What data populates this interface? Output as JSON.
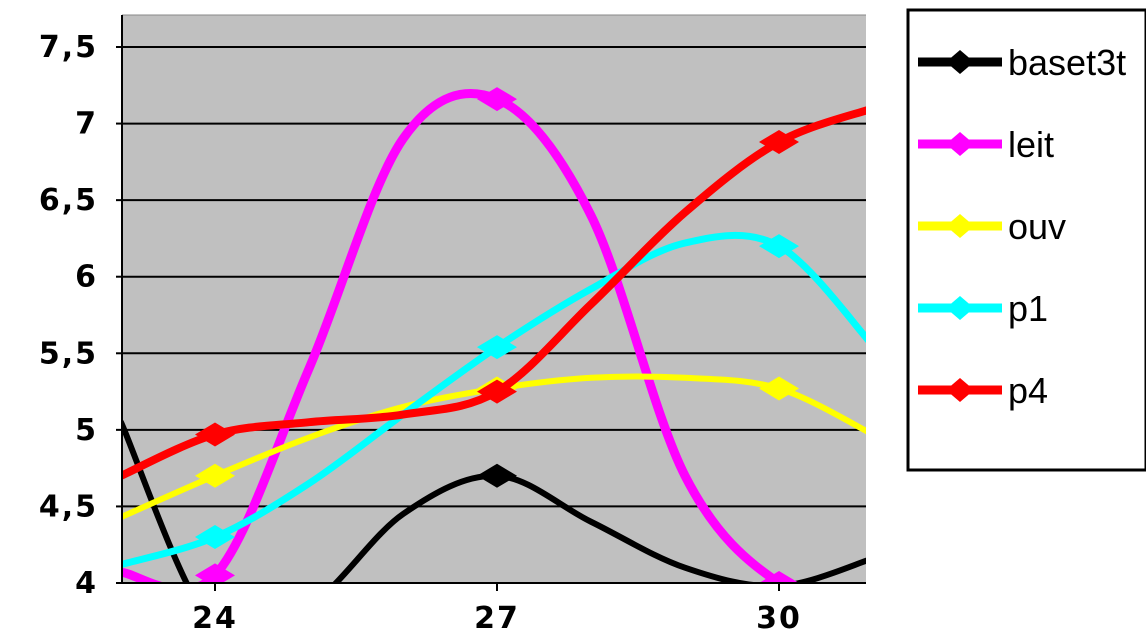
{
  "chart_data": {
    "type": "line",
    "title": "",
    "xlabel": "",
    "ylabel": "",
    "x_ticks": [
      "24",
      "27",
      "30"
    ],
    "y_ticks": [
      "4",
      "4,5",
      "5",
      "5,5",
      "6",
      "6,5",
      "7",
      "7,5"
    ],
    "xlim": [
      23,
      31
    ],
    "ylim": [
      4,
      7.5
    ],
    "grid": true,
    "legend_position": "right",
    "plot_background": "#c0c0c0",
    "series": [
      {
        "name": "baset3t",
        "color": "#000000",
        "points": [
          [
            23,
            5.05
          ],
          [
            24,
            3.7
          ],
          [
            25,
            3.85
          ],
          [
            26,
            4.45
          ],
          [
            27,
            4.7
          ],
          [
            28,
            4.4
          ],
          [
            29,
            4.1
          ],
          [
            30,
            3.98
          ],
          [
            31,
            4.16
          ]
        ],
        "markers": [
          [
            27,
            4.7
          ],
          [
            30,
            3.98
          ]
        ]
      },
      {
        "name": "leit",
        "color": "#ff00ff",
        "points": [
          [
            23,
            4.07
          ],
          [
            24,
            4.05
          ],
          [
            25,
            5.4
          ],
          [
            26,
            6.9
          ],
          [
            27,
            7.16
          ],
          [
            28,
            6.4
          ],
          [
            29,
            4.7
          ],
          [
            30,
            4.0
          ],
          [
            31,
            3.85
          ]
        ],
        "markers": [
          [
            24,
            4.05
          ],
          [
            27,
            7.16
          ],
          [
            30,
            4.0
          ]
        ]
      },
      {
        "name": "ouv",
        "color": "#ffff00",
        "points": [
          [
            23,
            4.43
          ],
          [
            24,
            4.7
          ],
          [
            25,
            4.95
          ],
          [
            26,
            5.15
          ],
          [
            27,
            5.27
          ],
          [
            28,
            5.34
          ],
          [
            29,
            5.34
          ],
          [
            30,
            5.27
          ],
          [
            31,
            4.97
          ]
        ],
        "markers": [
          [
            24,
            4.7
          ],
          [
            27,
            5.27
          ],
          [
            30,
            5.27
          ]
        ]
      },
      {
        "name": "p1",
        "color": "#00ffff",
        "points": [
          [
            23,
            4.12
          ],
          [
            24,
            4.3
          ],
          [
            25,
            4.65
          ],
          [
            26,
            5.1
          ],
          [
            27,
            5.54
          ],
          [
            28,
            5.92
          ],
          [
            29,
            6.22
          ],
          [
            30,
            6.2
          ],
          [
            31,
            5.55
          ]
        ],
        "markers": [
          [
            24,
            4.3
          ],
          [
            27,
            5.54
          ],
          [
            30,
            6.2
          ]
        ]
      },
      {
        "name": "p4",
        "color": "#ff0000",
        "points": [
          [
            23,
            4.7
          ],
          [
            24,
            4.97
          ],
          [
            25,
            5.05
          ],
          [
            26,
            5.1
          ],
          [
            27,
            5.25
          ],
          [
            28,
            5.82
          ],
          [
            29,
            6.42
          ],
          [
            30,
            6.88
          ],
          [
            31,
            7.1
          ]
        ],
        "markers": [
          [
            24,
            4.97
          ],
          [
            27,
            5.25
          ],
          [
            30,
            6.88
          ]
        ]
      }
    ]
  }
}
